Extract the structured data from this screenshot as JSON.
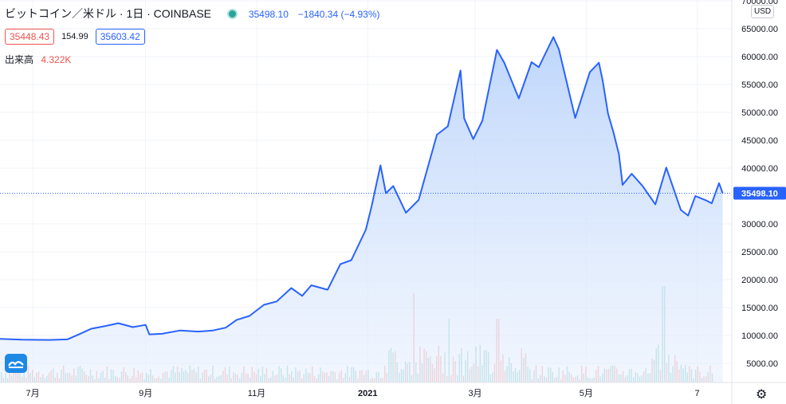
{
  "header": {
    "symbol": "ビットコイン／米ドル · 1日 · COINBASE",
    "last": "35498.10",
    "change": "−1840.34 (−4.93%)",
    "bid": "35448.43",
    "spread": "154.99",
    "ask": "35603.42",
    "volume_label": "出来高",
    "volume_value": "4.322K",
    "currency": "USD"
  },
  "colors": {
    "line": "#2962ff",
    "up": "#26a69a",
    "down": "#ef5350",
    "price_tag": "#2962ff"
  },
  "icons": {
    "logo": "tradingview-logo-icon",
    "settings": "gear-icon"
  },
  "chart_data": {
    "type": "area",
    "y_range": [
      3000,
      70000
    ],
    "y_ticks": [
      "70000.00",
      "65000.00",
      "60000.00",
      "55000.00",
      "50000.00",
      "45000.00",
      "40000.00",
      "35000.00",
      "30000.00",
      "25000.00",
      "20000.00",
      "15000.00",
      "10000.00",
      "5000.00"
    ],
    "x_ticks": [
      "7月",
      "9月",
      "11月",
      "2021",
      "3月",
      "5月",
      "7"
    ],
    "last_price_label": "35498.10",
    "last_price": 35498.1,
    "x_range": [
      "2020-06-13",
      "2021-07-20"
    ],
    "x_tick_dates": [
      "2020-07-01",
      "2020-09-01",
      "2020-11-01",
      "2021-01-01",
      "2021-03-01",
      "2021-05-01",
      "2021-07-01"
    ],
    "series": [
      {
        "points": [
          [
            "2020-06-13",
            9400
          ],
          [
            "2020-06-25",
            9250
          ],
          [
            "2020-07-10",
            9200
          ],
          [
            "2020-07-20",
            9300
          ],
          [
            "2020-07-27",
            10300
          ],
          [
            "2020-08-02",
            11200
          ],
          [
            "2020-08-10",
            11700
          ],
          [
            "2020-08-17",
            12200
          ],
          [
            "2020-08-25",
            11500
          ],
          [
            "2020-09-01",
            11900
          ],
          [
            "2020-09-03",
            10200
          ],
          [
            "2020-09-10",
            10300
          ],
          [
            "2020-09-20",
            10900
          ],
          [
            "2020-09-30",
            10700
          ],
          [
            "2020-10-08",
            10900
          ],
          [
            "2020-10-15",
            11400
          ],
          [
            "2020-10-21",
            12800
          ],
          [
            "2020-10-28",
            13500
          ],
          [
            "2020-11-05",
            15500
          ],
          [
            "2020-11-12",
            16100
          ],
          [
            "2020-11-20",
            18500
          ],
          [
            "2020-11-26",
            17100
          ],
          [
            "2020-12-01",
            19000
          ],
          [
            "2020-12-10",
            18200
          ],
          [
            "2020-12-17",
            22800
          ],
          [
            "2020-12-23",
            23500
          ],
          [
            "2020-12-31",
            29000
          ],
          [
            "2021-01-03",
            33000
          ],
          [
            "2021-01-08",
            40500
          ],
          [
            "2021-01-11",
            35500
          ],
          [
            "2021-01-15",
            36800
          ],
          [
            "2021-01-22",
            32000
          ],
          [
            "2021-01-29",
            34300
          ],
          [
            "2021-02-08",
            46000
          ],
          [
            "2021-02-14",
            47500
          ],
          [
            "2021-02-21",
            57500
          ],
          [
            "2021-02-23",
            48900
          ],
          [
            "2021-02-28",
            45200
          ],
          [
            "2021-03-05",
            48500
          ],
          [
            "2021-03-13",
            61200
          ],
          [
            "2021-03-17",
            58900
          ],
          [
            "2021-03-25",
            52500
          ],
          [
            "2021-04-01",
            59000
          ],
          [
            "2021-04-05",
            58100
          ],
          [
            "2021-04-13",
            63500
          ],
          [
            "2021-04-16",
            61300
          ],
          [
            "2021-04-25",
            49000
          ],
          [
            "2021-05-03",
            57200
          ],
          [
            "2021-05-08",
            58900
          ],
          [
            "2021-05-10",
            55800
          ],
          [
            "2021-05-13",
            49800
          ],
          [
            "2021-05-16",
            46400
          ],
          [
            "2021-05-19",
            42500
          ],
          [
            "2021-05-21",
            37000
          ],
          [
            "2021-05-26",
            39000
          ],
          [
            "2021-06-01",
            36800
          ],
          [
            "2021-06-08",
            33500
          ],
          [
            "2021-06-14",
            40100
          ],
          [
            "2021-06-22",
            32500
          ],
          [
            "2021-06-26",
            31500
          ],
          [
            "2021-06-30",
            35000
          ],
          [
            "2021-07-06",
            34200
          ],
          [
            "2021-07-09",
            33700
          ],
          [
            "2021-07-13",
            37300
          ],
          [
            "2021-07-15",
            35500
          ]
        ]
      }
    ],
    "volume_series_note": ""
  }
}
